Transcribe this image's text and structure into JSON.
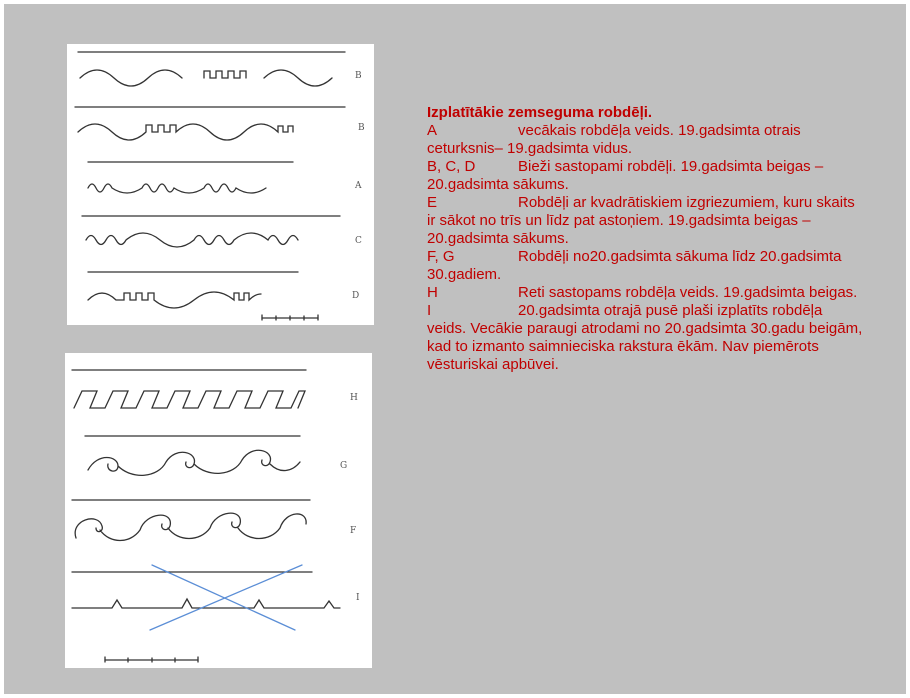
{
  "images": [
    {
      "labels": [
        "B",
        "B",
        "A",
        "C",
        "D"
      ]
    },
    {
      "labels": [
        "H",
        "G",
        "F",
        "I"
      ]
    }
  ],
  "text": {
    "title": "Izplatītākie zemseguma robdēļi.",
    "entries": [
      {
        "code": "A",
        "text": "vecākais robdēļa veids. 19.gadsimta otrais ceturksnis– 19.gadsimta vidus."
      },
      {
        "code": "B, C, D",
        "text": "Bieži sastopami robdēļi. 19.gadsimta beigas – 20.gadsimta sākums."
      },
      {
        "code": "E",
        "text": "Robdēļi ar kvadrātiskiem izgriezumiem, kuru skaits ir sākot no trīs un līdz pat astoņiem. 19.gadsimta beigas – 20.gadsimta sākums."
      },
      {
        "code": "F, G",
        "text": "Robdēļi no20.gadsimta sākuma līdz 20.gadsimta 30.gadiem."
      },
      {
        "code": "H",
        "text": "Reti sastopams robdēļa veids. 19.gadsimta beigas."
      },
      {
        "code": "I",
        "text": "20.gadsimta otrajā pusē plaši izplatīts robdēļa veids. Vecākie paraugi atrodami no 20.gadsimta 30.gadu beigām, kad to izmanto saimnieciska rakstura ēkām. Nav piemērots vēsturiskai apbūvei."
      }
    ]
  }
}
